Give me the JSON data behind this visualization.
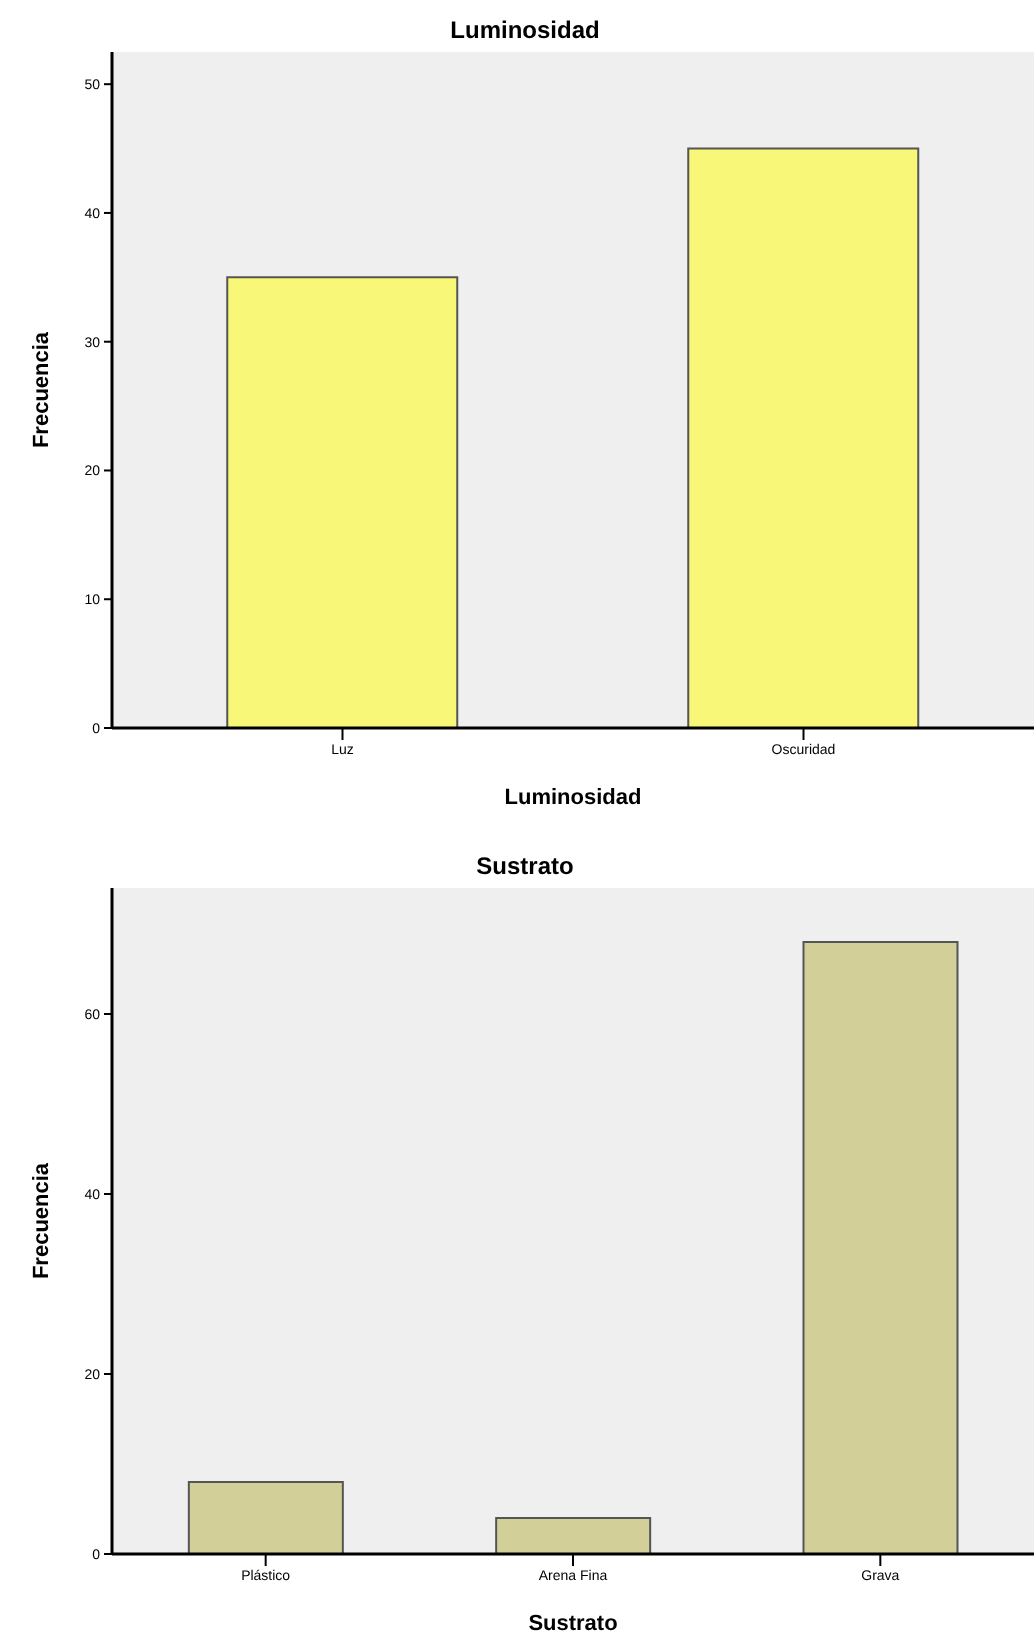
{
  "chart_data": [
    {
      "type": "bar",
      "title": "Luminosidad",
      "xlabel": "Luminosidad",
      "ylabel": "Frecuencia",
      "categories": [
        "Luz",
        "Oscuridad"
      ],
      "values": [
        35,
        45
      ],
      "color": "#f9f777",
      "ylim": [
        0,
        52.5
      ],
      "yticks": [
        0,
        10,
        20,
        30,
        40,
        50
      ],
      "grid": false,
      "legend": false
    },
    {
      "type": "bar",
      "title": "Sustrato",
      "xlabel": "Sustrato",
      "ylabel": "Frecuencia",
      "categories": [
        "Plástico",
        "Arena Fina",
        "Grava"
      ],
      "values": [
        8,
        4,
        68
      ],
      "color": "#d3cf98",
      "ylim": [
        0,
        74
      ],
      "yticks": [
        0,
        20,
        40,
        60
      ],
      "grid": false,
      "legend": false
    }
  ]
}
